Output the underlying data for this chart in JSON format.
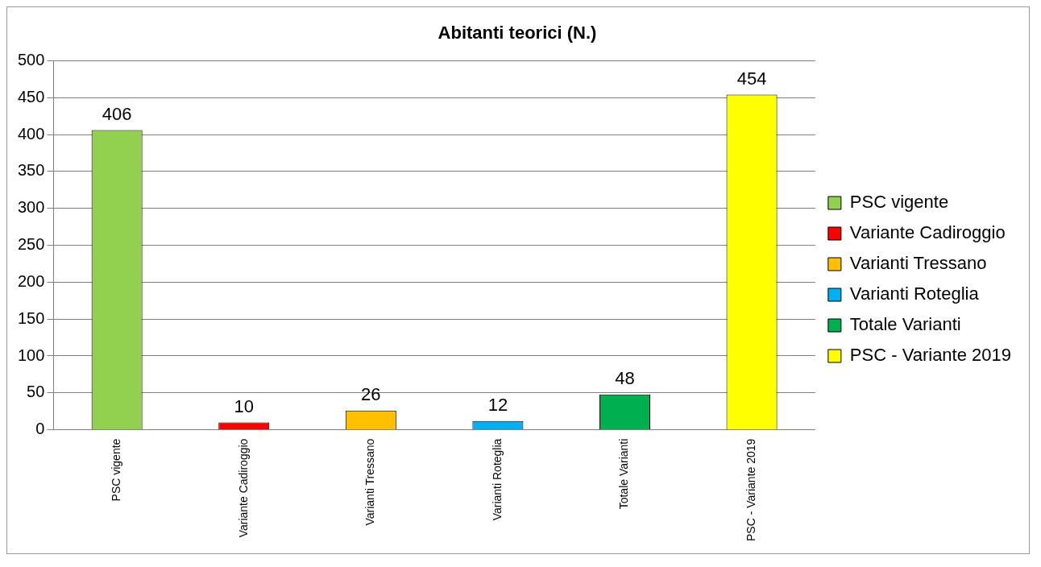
{
  "chart_data": {
    "type": "bar",
    "title": "Abitanti teorici (N.)",
    "categories": [
      "PSC vigente",
      "Variante Cadiroggio",
      "Varianti Tressano",
      "Varianti Roteglia",
      "Totale Varianti",
      "PSC - Variante 2019"
    ],
    "series": [
      {
        "name": "PSC vigente",
        "color": "#92d050",
        "values": [
          406,
          null,
          null,
          null,
          null,
          null
        ]
      },
      {
        "name": "Variante Cadiroggio",
        "color": "#ff0000",
        "values": [
          null,
          10,
          null,
          null,
          null,
          null
        ]
      },
      {
        "name": "Varianti Tressano",
        "color": "#ffc000",
        "values": [
          null,
          null,
          26,
          null,
          null,
          null
        ]
      },
      {
        "name": "Varianti Roteglia",
        "color": "#00b0f0",
        "values": [
          null,
          null,
          null,
          12,
          null,
          null
        ]
      },
      {
        "name": "Totale Varianti",
        "color": "#00b050",
        "values": [
          null,
          null,
          null,
          null,
          48,
          null
        ]
      },
      {
        "name": "PSC - Variante 2019",
        "color": "#ffff00",
        "values": [
          null,
          null,
          null,
          null,
          null,
          454
        ]
      }
    ],
    "ylim": [
      0,
      500
    ],
    "yticks": [
      0,
      50,
      100,
      150,
      200,
      250,
      300,
      350,
      400,
      450,
      500
    ],
    "grid": "y",
    "legend": "right",
    "data_labels": true
  }
}
